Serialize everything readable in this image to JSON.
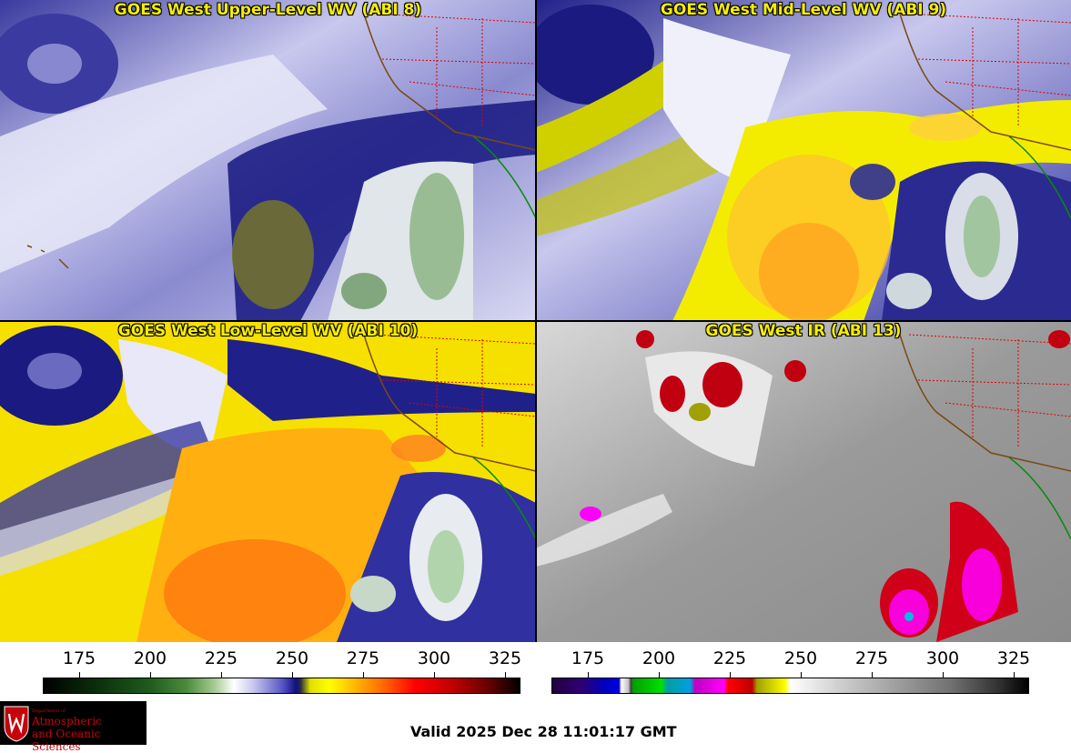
{
  "panels": {
    "upper_left": {
      "title": "GOES West Upper-Level WV (ABI 8)"
    },
    "upper_right": {
      "title": "GOES West Mid-Level WV (ABI 9)"
    },
    "lower_left": {
      "title": "GOES West Low-Level WV (ABI 10)"
    },
    "lower_right": {
      "title": "GOES West IR (ABI 13)"
    }
  },
  "colorbars": {
    "left": {
      "ticks": [
        "175",
        "200",
        "225",
        "250",
        "275",
        "300",
        "325"
      ]
    },
    "right": {
      "ticks": [
        "175",
        "200",
        "225",
        "250",
        "275",
        "300",
        "325"
      ]
    }
  },
  "logo": {
    "dept": "Department of",
    "line1": "Atmospheric",
    "line2": "and Oceanic Sciences"
  },
  "footer": {
    "valid_text": "Valid 2025 Dec 28 11:01:17 GMT"
  }
}
